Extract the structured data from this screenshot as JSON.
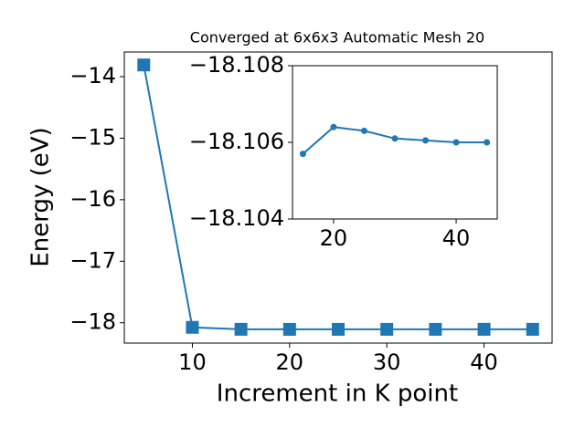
{
  "chart_data": [
    {
      "type": "line",
      "title": "Converged at 6x6x3 Automatic Mesh 20",
      "x_label": "Increment in K point",
      "y_label": "Energy (eV)",
      "x": [
        5,
        10,
        15,
        20,
        25,
        30,
        35,
        40,
        45
      ],
      "series": [
        {
          "color": "#1f77b4",
          "marker": "square",
          "values": [
            -13.81,
            -18.074,
            -18.1057,
            -18.1064,
            -18.1063,
            -18.1061,
            -18.10605,
            -18.106,
            -18.106
          ]
        }
      ],
      "xlim": [
        3,
        47
      ],
      "xticks": [
        10,
        20,
        30,
        40
      ],
      "ylim": [
        -18.33,
        -13.6
      ],
      "yticks": [
        {
          "value": -18,
          "label": "−18"
        },
        {
          "value": -17,
          "label": "−17"
        },
        {
          "value": -16,
          "label": "−16"
        },
        {
          "value": -15,
          "label": "−15"
        },
        {
          "value": -14,
          "label": "−14"
        }
      ]
    },
    {
      "type": "line",
      "x": [
        15,
        20,
        25,
        30,
        35,
        40,
        45
      ],
      "series": [
        {
          "color": "#1f77b4",
          "marker": "circle",
          "values": [
            -18.1057,
            -18.1064,
            -18.1063,
            -18.1061,
            -18.10605,
            -18.106,
            -18.106
          ]
        }
      ],
      "xlim": [
        13.3,
        46.7
      ],
      "xticks": [
        20,
        40
      ],
      "ylim": [
        -18.104,
        -18.108
      ],
      "yticks": [
        {
          "value": -18.104,
          "label": "−18.104"
        },
        {
          "value": -18.106,
          "label": "−18.106"
        },
        {
          "value": -18.108,
          "label": "−18.108"
        }
      ]
    }
  ]
}
